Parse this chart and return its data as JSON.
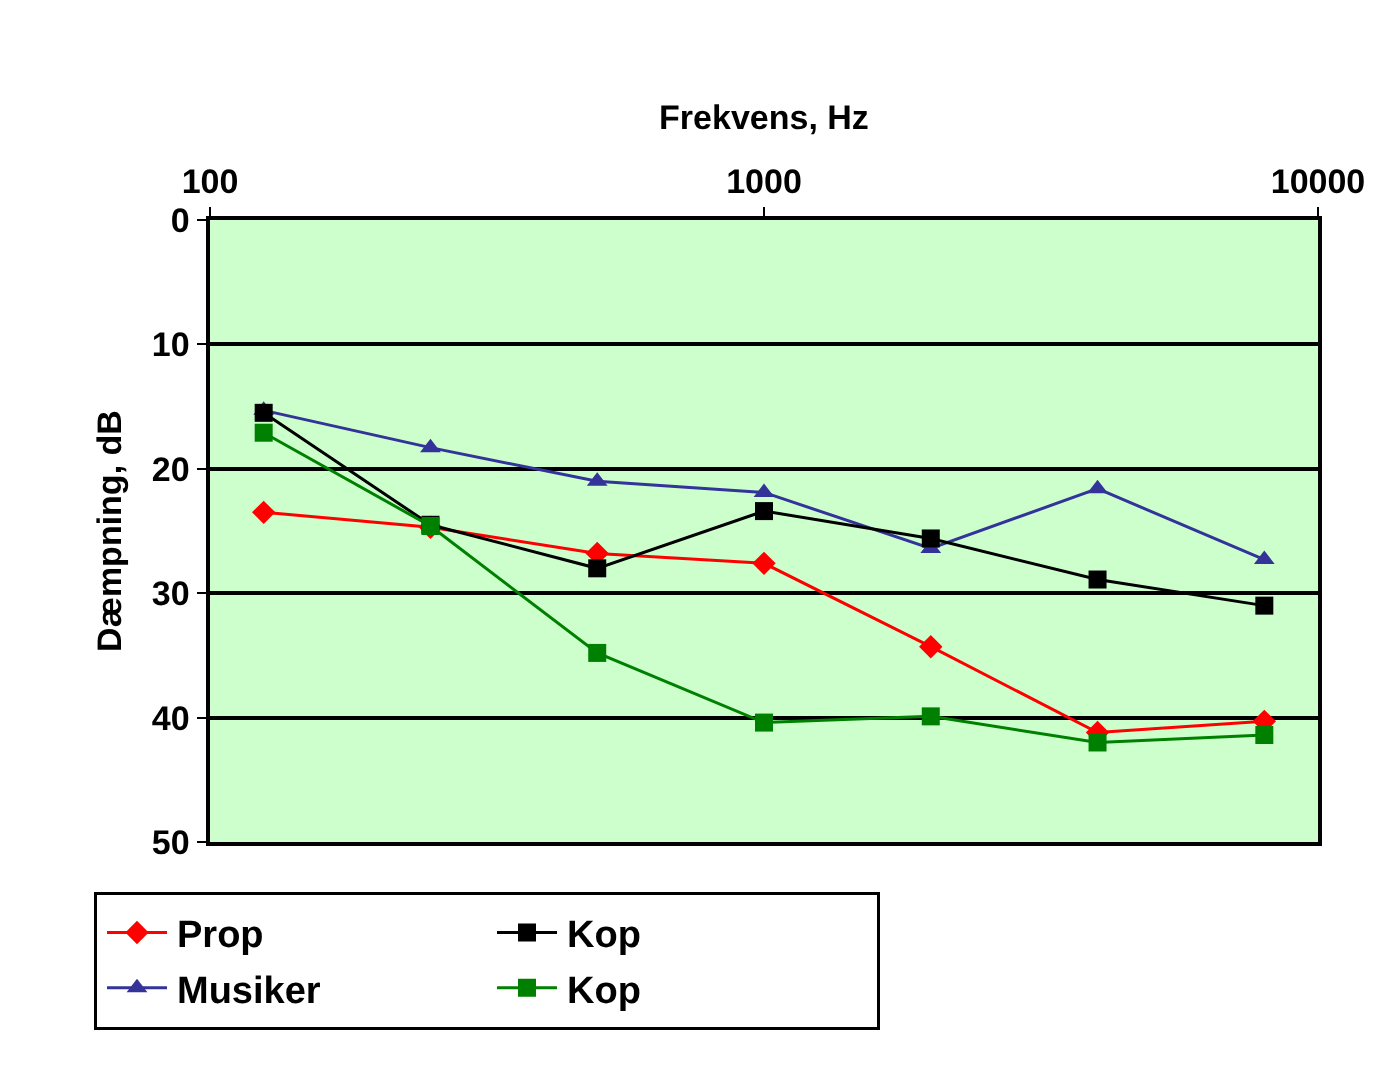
{
  "chart_data": {
    "type": "line",
    "xlabel": "Frekvens, Hz",
    "ylabel": "Dæmpning, dB",
    "x": [
      125,
      250,
      500,
      1000,
      2000,
      4000,
      8000
    ],
    "series": [
      {
        "name": "Prop",
        "color": "#ff0000",
        "marker": "diamond",
        "values": [
          23.5,
          24.7,
          26.8,
          27.6,
          34.3,
          41.2,
          40.3
        ]
      },
      {
        "name": "Musiker",
        "color": "#333399",
        "marker": "triangle",
        "values": [
          15.3,
          18.3,
          21,
          21.9,
          26.4,
          21.6,
          27.3
        ]
      },
      {
        "name": "Kop",
        "color": "#000000",
        "marker": "square",
        "values": [
          15.5,
          24.5,
          28,
          23.4,
          25.6,
          28.9,
          31
        ]
      },
      {
        "name": "Kop",
        "color": "#008000",
        "marker": "square",
        "values": [
          17.1,
          24.6,
          34.8,
          40.4,
          39.9,
          42,
          41.4
        ]
      }
    ],
    "log": "x",
    "xlim": [
      100,
      10000
    ],
    "xticks": [
      100,
      1000,
      10000
    ],
    "ylim": [
      50,
      0
    ],
    "yticks": [
      0,
      10,
      20,
      30,
      40,
      50
    ],
    "grid": "y",
    "legend": "bottom",
    "line_style": "solid"
  }
}
